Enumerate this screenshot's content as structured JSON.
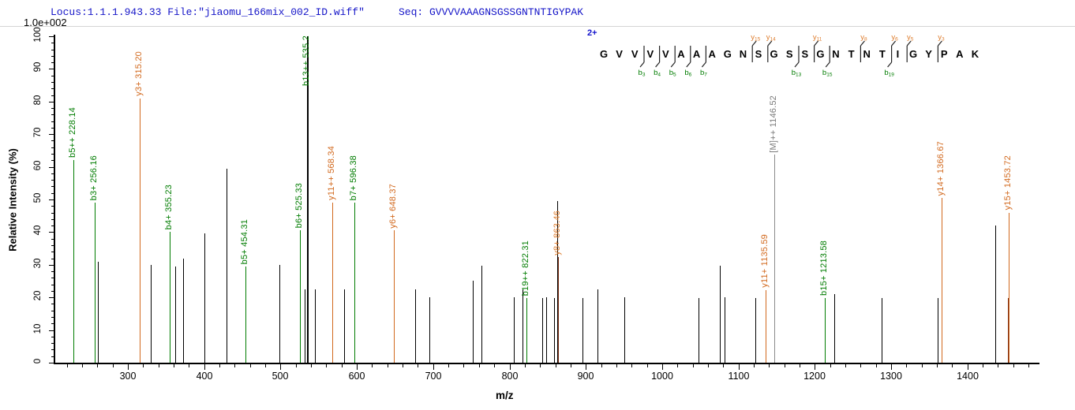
{
  "header": {
    "locus_file": "Locus:1.1.1.943.33 File:\"jiaomu_166mix_002_ID.wiff\"",
    "seq": "Seq: GVVVVAAAGNSGSSGNTNTIGYPAK"
  },
  "axes": {
    "y_scale_label": "1.0e+002",
    "y_title": "Relative  Intensity (%)",
    "x_title": "m/z"
  },
  "sequence_panel": {
    "charge": "2+",
    "peptide": "GVVVVAAAGNSGSSGNTNTIGYPAK",
    "b_ion_marks": [
      {
        "after_residue": 3,
        "ion": "b",
        "num": 3
      },
      {
        "after_residue": 4,
        "ion": "b",
        "num": 4
      },
      {
        "after_residue": 5,
        "ion": "b",
        "num": 5
      },
      {
        "after_residue": 6,
        "ion": "b",
        "num": 6
      },
      {
        "after_residue": 7,
        "ion": "b",
        "num": 7
      },
      {
        "after_residue": 13,
        "ion": "b",
        "num": 13
      },
      {
        "after_residue": 15,
        "ion": "b",
        "num": 15
      },
      {
        "after_residue": 19,
        "ion": "b",
        "num": 19
      }
    ],
    "y_ion_marks": [
      {
        "after_residue": 10,
        "ion": "y",
        "num": 15
      },
      {
        "after_residue": 11,
        "ion": "y",
        "num": 14
      },
      {
        "after_residue": 14,
        "ion": "y",
        "num": 11
      },
      {
        "after_residue": 17,
        "ion": "y",
        "num": 8
      },
      {
        "after_residue": 19,
        "ion": "y",
        "num": 6
      },
      {
        "after_residue": 20,
        "ion": "y",
        "num": 5
      },
      {
        "after_residue": 22,
        "ion": "y",
        "num": 3
      }
    ]
  },
  "colors": {
    "green": "#007C00",
    "orange": "#D2691E",
    "orange_label": "#DD7B2B",
    "black": "#000000",
    "gray": "#8A8A8A",
    "gray_label": "#7A7A7A",
    "darkred": "#7C2B10",
    "header_blue": "#1515C8",
    "charge_blue": "#1414CC",
    "mark_stroke": "#222222"
  },
  "chart_data": {
    "type": "bar",
    "subtype": "ms2-peptide-spectrum",
    "title": "Locus:1.1.1.943.33 File:\"jiaomu_166mix_002_ID.wiff\"  Seq: GVVVVAAAGNSGSSGNTNTIGYPAK",
    "xlabel": "m/z",
    "ylabel": "Relative  Intensity (%)",
    "y_scale_note": "1.0e+002",
    "xlim": [
      205,
      1493
    ],
    "ylim": [
      0,
      100
    ],
    "x_ticks": [
      300,
      400,
      500,
      600,
      700,
      800,
      900,
      1000,
      1100,
      1200,
      1300,
      1400
    ],
    "x_minor_tick_step": 20,
    "y_ticks": [
      0,
      10,
      20,
      30,
      40,
      50,
      60,
      70,
      80,
      90,
      100
    ],
    "y_minor_tick_step": 2,
    "legend": "green = b ions, orange = y ions, gray = precursor [M]++, black = unassigned",
    "peaks": [
      {
        "mz": 228.14,
        "intensity": 62,
        "color": "green",
        "label": "b5++ 228.14"
      },
      {
        "mz": 256.16,
        "intensity": 49,
        "color": "green",
        "label": "b3+ 256.16"
      },
      {
        "mz": 261,
        "intensity": 31,
        "color": "black"
      },
      {
        "mz": 315.2,
        "intensity": 81,
        "color": "orange",
        "label": "y3+ 315.20"
      },
      {
        "mz": 330,
        "intensity": 30,
        "color": "black"
      },
      {
        "mz": 355.23,
        "intensity": 40,
        "color": "green",
        "label": "b4+ 355.23"
      },
      {
        "mz": 362,
        "intensity": 29.5,
        "color": "black"
      },
      {
        "mz": 372,
        "intensity": 32,
        "color": "black"
      },
      {
        "mz": 400,
        "intensity": 39.5,
        "color": "black"
      },
      {
        "mz": 429,
        "intensity": 59.5,
        "color": "black"
      },
      {
        "mz": 454.31,
        "intensity": 29.5,
        "color": "green",
        "label": "b5+ 454.31"
      },
      {
        "mz": 499,
        "intensity": 30,
        "color": "black"
      },
      {
        "mz": 525.33,
        "intensity": 40.5,
        "color": "green",
        "label": "b6+ 525.33"
      },
      {
        "mz": 531.5,
        "intensity": 22.5,
        "color": "black"
      },
      {
        "mz": 535.2,
        "intensity": 100,
        "color": "black",
        "label": "b13++ 535.2",
        "label_color": "green",
        "label_bottom": 84,
        "w": 2
      },
      {
        "mz": 545,
        "intensity": 22.5,
        "color": "black"
      },
      {
        "mz": 568.34,
        "intensity": 49,
        "color": "orange",
        "label": "y11++ 568.34"
      },
      {
        "mz": 583,
        "intensity": 22.5,
        "color": "black"
      },
      {
        "mz": 596.38,
        "intensity": 49,
        "color": "green",
        "label": "b7+ 596.38"
      },
      {
        "mz": 648.37,
        "intensity": 40.5,
        "color": "orange",
        "label": "y6+ 648.37"
      },
      {
        "mz": 676,
        "intensity": 22.5,
        "color": "black"
      },
      {
        "mz": 695,
        "intensity": 20,
        "color": "black"
      },
      {
        "mz": 752,
        "intensity": 25.2,
        "color": "black"
      },
      {
        "mz": 763,
        "intensity": 29.8,
        "color": "black"
      },
      {
        "mz": 806,
        "intensity": 20,
        "color": "black"
      },
      {
        "mz": 817,
        "intensity": 22.5,
        "color": "black"
      },
      {
        "mz": 822.31,
        "intensity": 19.7,
        "color": "green",
        "label": "b19++ 822.31"
      },
      {
        "mz": 843,
        "intensity": 19.7,
        "color": "black"
      },
      {
        "mz": 848,
        "intensity": 20,
        "color": "black"
      },
      {
        "mz": 858,
        "intensity": 19.7,
        "color": "black"
      },
      {
        "mz": 862.6,
        "intensity": 49.5,
        "color": "black"
      },
      {
        "mz": 863.46,
        "intensity": 32.3,
        "color": "darkred",
        "label": "y8+ 863.46",
        "label_color": "orange_label"
      },
      {
        "mz": 896,
        "intensity": 19.7,
        "color": "black"
      },
      {
        "mz": 915,
        "intensity": 22.5,
        "color": "black"
      },
      {
        "mz": 950,
        "intensity": 20,
        "color": "black"
      },
      {
        "mz": 1048,
        "intensity": 19.7,
        "color": "black"
      },
      {
        "mz": 1076,
        "intensity": 29.8,
        "color": "black"
      },
      {
        "mz": 1082,
        "intensity": 20,
        "color": "black"
      },
      {
        "mz": 1122,
        "intensity": 19.7,
        "color": "black"
      },
      {
        "mz": 1135.59,
        "intensity": 22.2,
        "color": "orange",
        "label": "y11+ 1135.59"
      },
      {
        "mz": 1146.52,
        "intensity": 63.7,
        "color": "gray",
        "label": "[M]++ 1146.52",
        "label_color": "gray_label"
      },
      {
        "mz": 1213.58,
        "intensity": 19.7,
        "color": "green",
        "label": "b15+ 1213.58"
      },
      {
        "mz": 1226,
        "intensity": 21,
        "color": "black"
      },
      {
        "mz": 1288,
        "intensity": 19.8,
        "color": "black"
      },
      {
        "mz": 1361,
        "intensity": 19.8,
        "color": "black"
      },
      {
        "mz": 1366.67,
        "intensity": 50.5,
        "color": "orange",
        "label": "y14+ 1366.67"
      },
      {
        "mz": 1437,
        "intensity": 42,
        "color": "black"
      },
      {
        "mz": 1453.72,
        "intensity": 46,
        "color": "orange",
        "label": "y15+ 1453.72"
      },
      {
        "mz": 1453.3,
        "intensity": 19.8,
        "color": "darkred"
      }
    ]
  }
}
